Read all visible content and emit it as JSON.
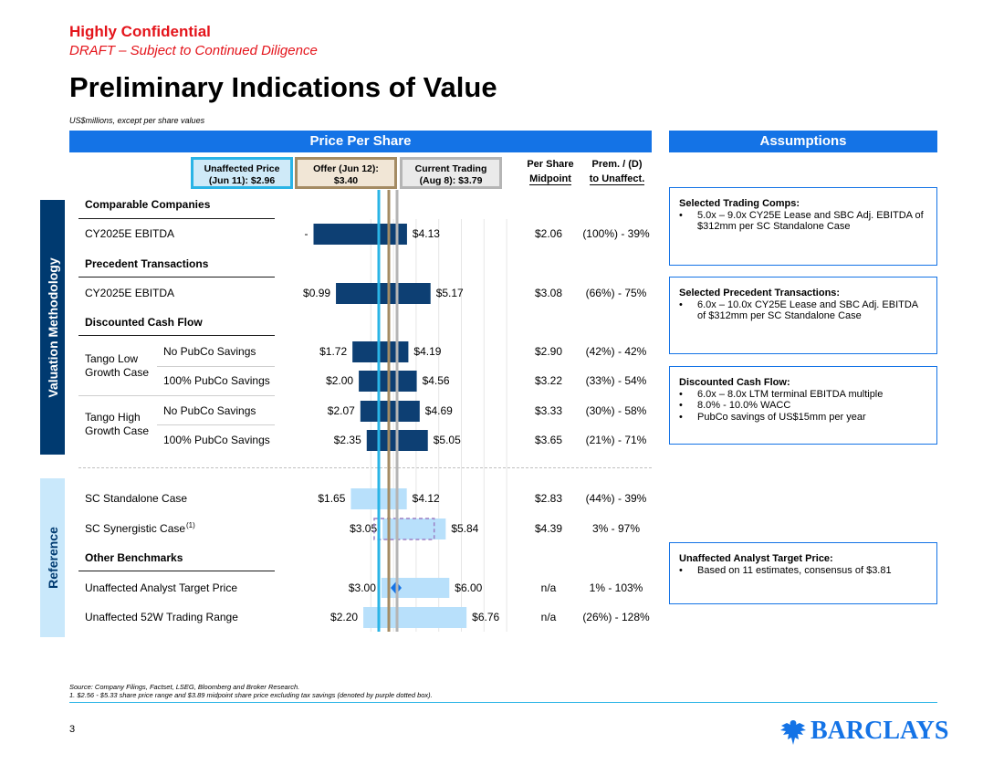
{
  "header": {
    "confidential": "Highly Confidential",
    "draft": "DRAFT – Subject to Continued Diligence",
    "title": "Preliminary Indications of Value",
    "units": "US$millions, except per share values"
  },
  "banners": {
    "price_per_share": "Price Per Share",
    "assumptions": "Assumptions"
  },
  "reference_prices": [
    {
      "label": "Unaffected Price (Jun 11): $2.96",
      "line1": "Unaffected Price",
      "line2": "(Jun 11): $2.96",
      "value": 2.96,
      "color": "#2ab4e6"
    },
    {
      "label": "Offer (Jun 12): $3.40",
      "line1": "Offer (Jun 12):",
      "line2": "$3.40",
      "value": 3.4,
      "color": "#a48b63"
    },
    {
      "label": "Current Trading (Aug 8): $3.79",
      "line1": "Current Trading",
      "line2": "(Aug 8): $3.79",
      "value": 3.79,
      "color": "#b5b5b5"
    }
  ],
  "columns": {
    "midpoint_line1": "Per Share",
    "midpoint_line2": "Midpoint",
    "premium_line1": "Prem. / (D)",
    "premium_line2": "to Unaffect."
  },
  "sidebars": {
    "valuation": "Valuation Methodology",
    "reference": "Reference"
  },
  "sections": {
    "comps": "Comparable Companies",
    "precedents": "Precedent Transactions",
    "dcf": "Discounted Cash Flow",
    "benchmarks": "Other Benchmarks",
    "tango_low": [
      "Tango Low",
      "Growth Case"
    ],
    "tango_high": [
      "Tango High",
      "Growth Case"
    ]
  },
  "chart_data": {
    "type": "bar",
    "title": "Price Per Share",
    "orientation": "horizontal floating range",
    "rows": [
      {
        "label": "CY2025E EBITDA",
        "low": 0.0,
        "high": 4.13,
        "low_label": "-",
        "high_label": "$4.13",
        "midpoint": "$2.06",
        "premium": "(100%) - 39%",
        "style": "dark"
      },
      {
        "label": "CY2025E EBITDA",
        "low": 0.99,
        "high": 5.17,
        "low_label": "$0.99",
        "high_label": "$5.17",
        "midpoint": "$3.08",
        "premium": "(66%) - 75%",
        "style": "dark"
      },
      {
        "label": "No PubCo Savings",
        "low": 1.72,
        "high": 4.19,
        "low_label": "$1.72",
        "high_label": "$4.19",
        "midpoint": "$2.90",
        "premium": "(42%) - 42%",
        "style": "dark"
      },
      {
        "label": "100% PubCo Savings",
        "low": 2.0,
        "high": 4.56,
        "low_label": "$2.00",
        "high_label": "$4.56",
        "midpoint": "$3.22",
        "premium": "(33%) - 54%",
        "style": "dark"
      },
      {
        "label": "No PubCo Savings",
        "low": 2.07,
        "high": 4.69,
        "low_label": "$2.07",
        "high_label": "$4.69",
        "midpoint": "$3.33",
        "premium": "(30%) - 58%",
        "style": "dark"
      },
      {
        "label": "100% PubCo Savings",
        "low": 2.35,
        "high": 5.05,
        "low_label": "$2.35",
        "high_label": "$5.05",
        "midpoint": "$3.65",
        "premium": "(21%) - 71%",
        "style": "dark"
      },
      {
        "label": "SC Standalone Case",
        "low": 1.65,
        "high": 4.12,
        "low_label": "$1.65",
        "high_label": "$4.12",
        "midpoint": "$2.83",
        "premium": "(44%) - 39%",
        "style": "light"
      },
      {
        "label": "SC Synergistic Case",
        "sup": "(1)",
        "low": 3.05,
        "high": 5.84,
        "low_label": "$3.05",
        "high_label": "$5.84",
        "midpoint": "$4.39",
        "premium": "3% - 97%",
        "style": "light",
        "excl_tax_low": 2.56,
        "excl_tax_high": 5.33
      },
      {
        "label": "Unaffected Analyst Target Price",
        "low": 3.0,
        "high": 6.0,
        "low_label": "$3.00",
        "high_label": "$6.00",
        "midpoint": "n/a",
        "premium": "1% - 103%",
        "style": "light",
        "consensus": 3.81
      },
      {
        "label": "Unaffected 52W Trading Range",
        "low": 2.2,
        "high": 6.76,
        "low_label": "$2.20",
        "high_label": "$6.76",
        "midpoint": "n/a",
        "premium": "(26%) - 128%",
        "style": "light"
      }
    ]
  },
  "assumptions": [
    {
      "title": "Selected Trading Comps:",
      "bullets": [
        "5.0x – 9.0x CY25E Lease and SBC Adj. EBITDA of $312mm per SC Standalone Case"
      ]
    },
    {
      "title": "Selected Precedent Transactions:",
      "bullets": [
        "6.0x – 10.0x CY25E Lease and SBC Adj. EBITDA of $312mm per SC Standalone Case"
      ]
    },
    {
      "title": "Discounted Cash Flow:",
      "bullets": [
        "6.0x – 8.0x LTM terminal EBITDA multiple",
        "8.0% - 10.0% WACC",
        "PubCo savings of US$15mm per year"
      ]
    },
    {
      "title": "Unaffected Analyst Target Price:",
      "bullets": [
        "Based on 11 estimates, consensus of $3.81"
      ]
    }
  ],
  "footer": {
    "source": "Source: Company Filings, Factset, LSEG, Bloomberg and Broker Research.",
    "note": "1. $2.56 - $5.33 share price range and $3.89 midpoint share price excluding tax savings (denoted by purple dotted box).",
    "page": "3",
    "logo": "BARCLAYS",
    "colors": {
      "dark_bar": "#0d3f73",
      "light_bar": "#b8e0fb",
      "accent": "#1473e6",
      "red": "#e4141b",
      "purple": "#9b7fc4"
    }
  }
}
